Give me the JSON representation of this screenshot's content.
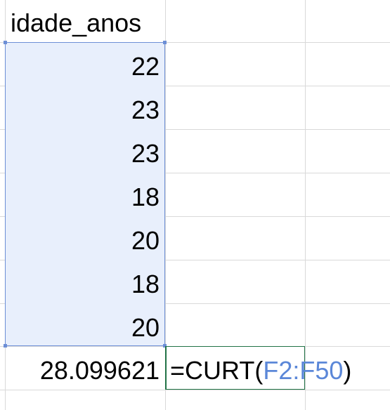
{
  "header": {
    "label": "idade_anos"
  },
  "column_values": [
    "22",
    "23",
    "23",
    "18",
    "20",
    "18",
    "20"
  ],
  "result": {
    "value": "28.099621"
  },
  "formula": {
    "prefix": "=CURT(",
    "range_ref": "F2:F50",
    "suffix": ")"
  },
  "colors": {
    "range_highlight_fill": "#e8effc",
    "range_highlight_border": "#6d8fd6",
    "range_ref_text": "#5b87d8",
    "active_cell_border": "#217346",
    "gridline": "#d9d9d9"
  }
}
